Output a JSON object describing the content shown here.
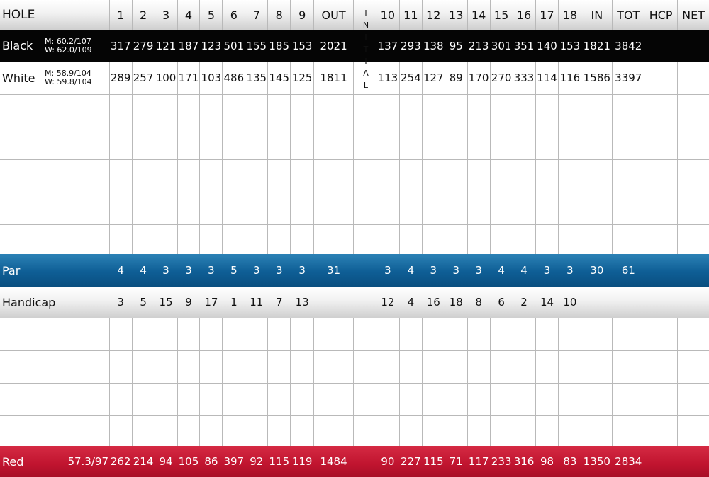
{
  "header": {
    "hole_label": "HOLE",
    "front": [
      "1",
      "2",
      "3",
      "4",
      "5",
      "6",
      "7",
      "8",
      "9"
    ],
    "out": "OUT",
    "initial_letters": [
      "I",
      "N",
      "I",
      "T",
      "I",
      "A",
      "L"
    ],
    "back": [
      "10",
      "11",
      "12",
      "13",
      "14",
      "15",
      "16",
      "17",
      "18"
    ],
    "in": "IN",
    "tot": "TOT",
    "hcp": "HCP",
    "net": "NET"
  },
  "tees": [
    {
      "name": "Black",
      "rating_m": "M:  60.2/107",
      "rating_w": "W:  62.0/109",
      "front": [
        "317",
        "279",
        "121",
        "187",
        "123",
        "501",
        "155",
        "185",
        "153"
      ],
      "out": "2021",
      "back": [
        "137",
        "293",
        "138",
        "95",
        "213",
        "301",
        "351",
        "140",
        "153"
      ],
      "in": "1821",
      "tot": "3842"
    },
    {
      "name": "White",
      "rating_m": "M:  58.9/104",
      "rating_w": "W:  59.8/104",
      "front": [
        "289",
        "257",
        "100",
        "171",
        "103",
        "486",
        "135",
        "145",
        "125"
      ],
      "out": "1811",
      "back": [
        "113",
        "254",
        "127",
        "89",
        "170",
        "270",
        "333",
        "114",
        "116"
      ],
      "in": "1586",
      "tot": "3397"
    }
  ],
  "par": {
    "label": "Par",
    "front": [
      "4",
      "4",
      "3",
      "3",
      "3",
      "5",
      "3",
      "3",
      "3"
    ],
    "out": "31",
    "back": [
      "3",
      "4",
      "3",
      "3",
      "3",
      "4",
      "4",
      "3",
      "3"
    ],
    "in": "30",
    "tot": "61"
  },
  "handicap": {
    "label": "Handicap",
    "front": [
      "3",
      "5",
      "15",
      "9",
      "17",
      "1",
      "11",
      "7",
      "13"
    ],
    "back": [
      "12",
      "4",
      "16",
      "18",
      "8",
      "6",
      "2",
      "14",
      "10"
    ]
  },
  "red": {
    "label": "Red",
    "rating": "57.3/97",
    "front": [
      "262",
      "214",
      "94",
      "105",
      "86",
      "397",
      "92",
      "115",
      "119"
    ],
    "out": "1484",
    "back": [
      "90",
      "227",
      "115",
      "71",
      "117",
      "233",
      "316",
      "98",
      "83"
    ],
    "in": "1350",
    "tot": "2834"
  },
  "colors": {
    "black_row": "#050505",
    "par_row": "#0e5e95",
    "red_row": "#c0142f",
    "grid_line": "#b9b9b9"
  }
}
